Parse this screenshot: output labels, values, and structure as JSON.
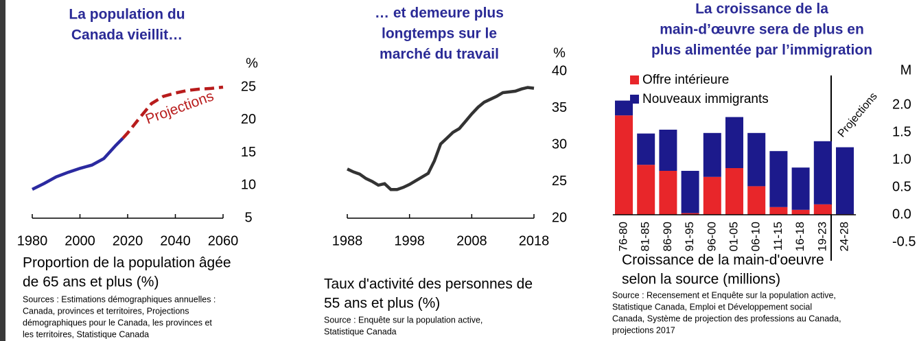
{
  "chart_data": [
    {
      "type": "line",
      "title": [
        "La population du",
        "Canada vieillit…"
      ],
      "unit": "%",
      "x": [
        1980,
        1985,
        1990,
        1995,
        2000,
        2005,
        2010,
        2015,
        2018,
        2020,
        2025,
        2030,
        2035,
        2040,
        2045,
        2050,
        2055,
        2060
      ],
      "series": [
        {
          "color": "#2b2aa0",
          "line_style": "solid",
          "values": [
            9.4,
            10.3,
            11.3,
            12.0,
            12.6,
            13.1,
            14.1,
            16.1,
            17.2,
            null,
            null,
            null,
            null,
            null,
            null,
            null,
            null,
            null
          ]
        },
        {
          "color": "#b81c1c",
          "line_style": "dashed",
          "values": [
            null,
            null,
            null,
            null,
            null,
            null,
            null,
            null,
            17.2,
            18.0,
            20.3,
            22.5,
            23.6,
            24.1,
            24.5,
            24.7,
            24.8,
            25.0
          ]
        }
      ],
      "annotation": "Projections",
      "xlim": [
        1980,
        2060
      ],
      "xticks": [
        1980,
        2000,
        2020,
        2040,
        2060
      ],
      "ylim": [
        5,
        25
      ],
      "yticks": [
        5,
        10,
        15,
        20,
        25
      ],
      "caption": [
        "Proportion de la population âgée",
        "de 65 ans et plus (%)"
      ],
      "source": [
        "Sources : Estimations démographiques annuelles :",
        "Canada, provinces et territoires, Projections",
        "démographiques pour le Canada, les provinces et",
        "les territoires, Statistique Canada"
      ]
    },
    {
      "type": "line",
      "title": [
        "… et demeure plus",
        "longtemps sur le",
        "marché du travail"
      ],
      "unit": "%",
      "x": [
        1988,
        1989,
        1990,
        1991,
        1992,
        1993,
        1994,
        1995,
        1996,
        1997,
        1998,
        1999,
        2000,
        2001,
        2002,
        2003,
        2004,
        2005,
        2006,
        2007,
        2008,
        2009,
        2010,
        2011,
        2012,
        2013,
        2014,
        2015,
        2016,
        2017,
        2018
      ],
      "series": [
        {
          "color": "#333333",
          "line_style": "solid",
          "values": [
            26.7,
            26.3,
            26.0,
            25.4,
            25.0,
            24.5,
            24.7,
            23.9,
            23.9,
            24.2,
            24.6,
            25.1,
            25.6,
            26.1,
            27.8,
            30.1,
            30.9,
            31.7,
            32.2,
            33.2,
            34.2,
            35.1,
            35.8,
            36.2,
            36.6,
            37.1,
            37.2,
            37.3,
            37.6,
            37.8,
            37.7
          ]
        }
      ],
      "xlim": [
        1988,
        2018
      ],
      "xticks": [
        1988,
        1998,
        2008,
        2018
      ],
      "ylim": [
        20,
        40
      ],
      "yticks": [
        20,
        25,
        30,
        35,
        40
      ],
      "caption": [
        "Taux d'activité des personnes de",
        "55 ans et plus (%)"
      ],
      "source": [
        "Source : Enquête sur la population active,",
        "Statistique Canada"
      ]
    },
    {
      "type": "bar",
      "stacked": true,
      "title": [
        "La croissance de la",
        "main-d’œuvre sera de plus en",
        "plus alimentée par l’immigration"
      ],
      "unit": "M",
      "categories": [
        "76-80",
        "81-85",
        "86-90",
        "91-95",
        "96-00",
        "01-05",
        "06-10",
        "11-15",
        "16-18",
        "19-23",
        "24-28"
      ],
      "series": [
        {
          "name": "Offre intérieure",
          "color": "#e8262a",
          "values": [
            1.81,
            0.91,
            0.8,
            0.03,
            0.69,
            0.85,
            0.52,
            0.14,
            0.09,
            0.19,
            0.01
          ]
        },
        {
          "name": "Nouveaux immigrants",
          "color": "#1c1a8c",
          "values": [
            0.27,
            0.57,
            0.75,
            0.77,
            0.8,
            0.93,
            0.97,
            1.02,
            0.77,
            1.15,
            1.22
          ]
        }
      ],
      "annotation": "Projections",
      "ylim": [
        -0.5,
        2
      ],
      "yticks": [
        {
          "value": 2,
          "label": "2.0"
        },
        1.5,
        {
          "value": 1,
          "label": "1.0"
        },
        0.5,
        {
          "value": 0,
          "label": "0.0"
        },
        -0.5
      ],
      "legend": "upper left",
      "caption": [
        "Croissance de la main-d'oeuvre",
        "selon la source (millions)"
      ],
      "source": [
        "Source : Recensement et Enquête sur la population active,",
        "Statistique Canada, Emploi et Développement social",
        "Canada, Système de projection des professions au Canada,",
        "projections 2017"
      ]
    }
  ]
}
